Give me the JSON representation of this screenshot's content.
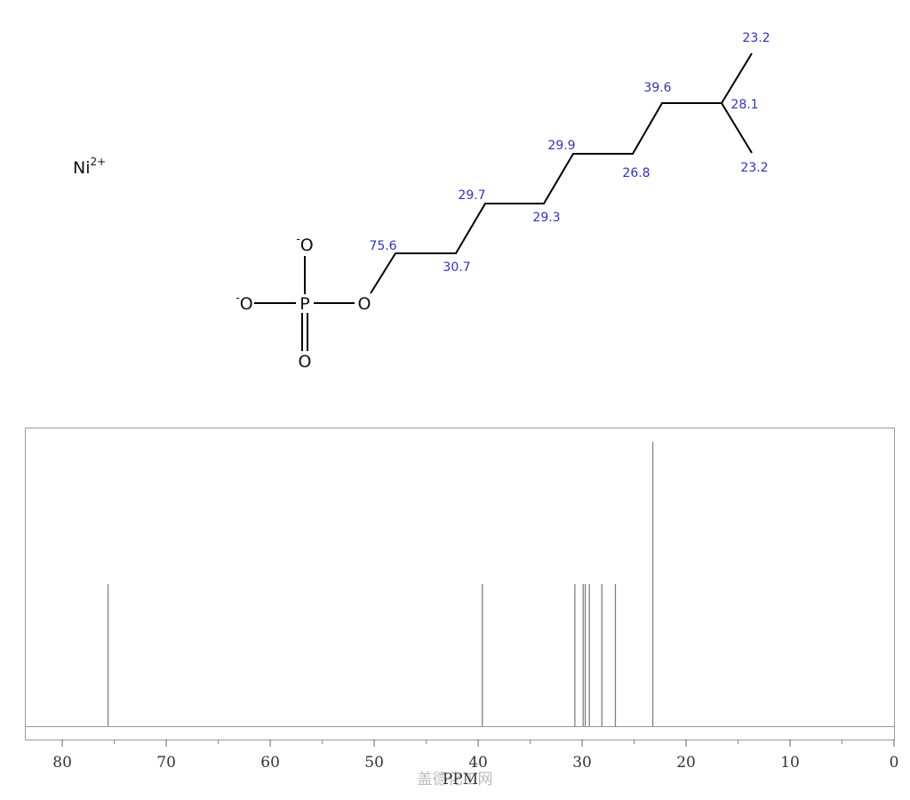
{
  "molecule": {
    "ion": {
      "symbol": "Ni",
      "charge": "2+"
    },
    "atoms": [
      {
        "symbol": "O",
        "charge": "-"
      },
      {
        "symbol": "P"
      },
      {
        "symbol": "O",
        "charge": "-"
      },
      {
        "symbol": "O"
      },
      {
        "symbol": "O"
      }
    ],
    "shifts": [
      75.6,
      30.7,
      29.7,
      29.3,
      29.9,
      26.8,
      39.6,
      28.1,
      23.2,
      23.2
    ]
  },
  "chart_data": {
    "type": "stem",
    "x_label": "PPM",
    "watermark": "盖德化工网",
    "x": [
      75.6,
      39.6,
      30.7,
      29.9,
      29.7,
      29.3,
      28.1,
      26.8,
      23.2
    ],
    "values": [
      1,
      1,
      1,
      1,
      1,
      1,
      1,
      1,
      2
    ],
    "color": "#808080",
    "xlim": [
      83.6,
      0
    ],
    "ylim": [
      0,
      2.1
    ],
    "xticks": [
      80,
      70,
      60,
      50,
      40,
      30,
      20,
      10,
      0
    ],
    "xminorticks": [
      75,
      65,
      55,
      45,
      35,
      25,
      15,
      5
    ]
  }
}
